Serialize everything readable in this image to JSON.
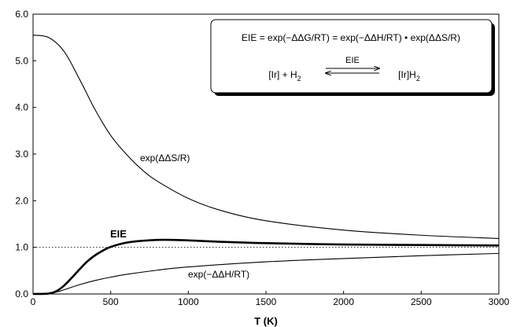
{
  "chart_data": {
    "type": "line",
    "xlabel": "T (K)",
    "ylabel": "",
    "xlim": [
      0,
      3000
    ],
    "ylim": [
      0,
      6
    ],
    "xticks": [
      "0",
      "500",
      "1000",
      "1500",
      "2000",
      "2500",
      "3000"
    ],
    "yticks": [
      "0.0",
      "1.0",
      "2.0",
      "3.0",
      "4.0",
      "5.0",
      "6.0"
    ],
    "reference_line": {
      "y": 1.0,
      "style": "dotted"
    },
    "series": [
      {
        "name": "exp(ΔΔS/R)",
        "x": [
          0,
          100,
          200,
          300,
          400,
          500,
          600,
          700,
          800,
          1000,
          1200,
          1500,
          2000,
          2500,
          3000
        ],
        "y": [
          5.55,
          5.5,
          5.2,
          4.6,
          3.95,
          3.4,
          3.0,
          2.67,
          2.42,
          2.05,
          1.8,
          1.57,
          1.37,
          1.26,
          1.19
        ]
      },
      {
        "name": "EIE",
        "x": [
          0,
          100,
          150,
          200,
          250,
          300,
          350,
          400,
          450,
          500,
          600,
          700,
          800,
          900,
          1000,
          1200,
          1500,
          2000,
          2500,
          3000
        ],
        "y": [
          0,
          0.01,
          0.06,
          0.18,
          0.35,
          0.53,
          0.7,
          0.83,
          0.93,
          1.01,
          1.1,
          1.14,
          1.16,
          1.16,
          1.15,
          1.12,
          1.09,
          1.06,
          1.05,
          1.04
        ]
      },
      {
        "name": "exp(−ΔΔH/RT)",
        "x": [
          0,
          100,
          150,
          200,
          300,
          400,
          500,
          600,
          800,
          1000,
          1500,
          2000,
          2500,
          3000
        ],
        "y": [
          0,
          0.01,
          0.04,
          0.09,
          0.2,
          0.29,
          0.36,
          0.42,
          0.51,
          0.58,
          0.69,
          0.76,
          0.82,
          0.87
        ]
      }
    ],
    "labels": {
      "entropy": "exp(ΔΔS/R)",
      "eie": "EIE",
      "enthalpy": "exp(−ΔΔH/RT)"
    },
    "inset": {
      "equation": "EIE = exp(−ΔΔG/RT) = exp(−ΔΔH/RT) • exp(ΔΔS/R)",
      "reactant": "[Ir] + H2",
      "arrow_label": "EIE",
      "product": "[Ir]H2"
    }
  }
}
